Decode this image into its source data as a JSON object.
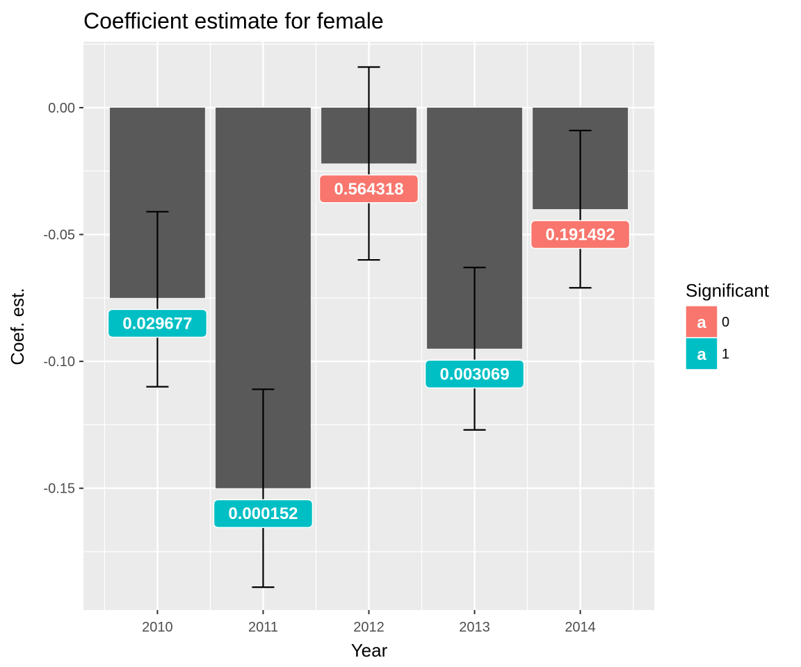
{
  "chart_data": {
    "type": "bar",
    "title": "Coefficient estimate for female",
    "xlabel": "Year",
    "ylabel": "Coef. est.",
    "categories": [
      "2010",
      "2011",
      "2012",
      "2013",
      "2014"
    ],
    "values": [
      -0.075,
      -0.15,
      -0.022,
      -0.095,
      -0.04
    ],
    "error_bars": {
      "lower": [
        -0.11,
        -0.189,
        -0.06,
        -0.127,
        -0.071
      ],
      "upper": [
        -0.041,
        -0.111,
        0.016,
        -0.063,
        -0.009
      ]
    },
    "labels": [
      {
        "text": "0.029677",
        "y": -0.085,
        "significant": "1"
      },
      {
        "text": "0.000152",
        "y": -0.16,
        "significant": "1"
      },
      {
        "text": "0.564318",
        "y": -0.032,
        "significant": "0"
      },
      {
        "text": "0.003069",
        "y": -0.105,
        "significant": "1"
      },
      {
        "text": "0.191492",
        "y": -0.05,
        "significant": "0"
      }
    ],
    "ylim": [
      -0.198,
      0.026
    ],
    "yticks": [
      0.0,
      -0.05,
      -0.1,
      -0.15
    ],
    "ytick_labels": [
      "0.00",
      "-0.05",
      "-0.10",
      "-0.15"
    ],
    "grid": true,
    "bar_color": "#595959",
    "panel_background": "#ebebeb",
    "legend": {
      "title": "Significant",
      "placement": "right",
      "key_glyph": "a",
      "entries": [
        {
          "label": "0",
          "color": "#f8766d"
        },
        {
          "label": "1",
          "color": "#00bfc4"
        }
      ]
    }
  }
}
